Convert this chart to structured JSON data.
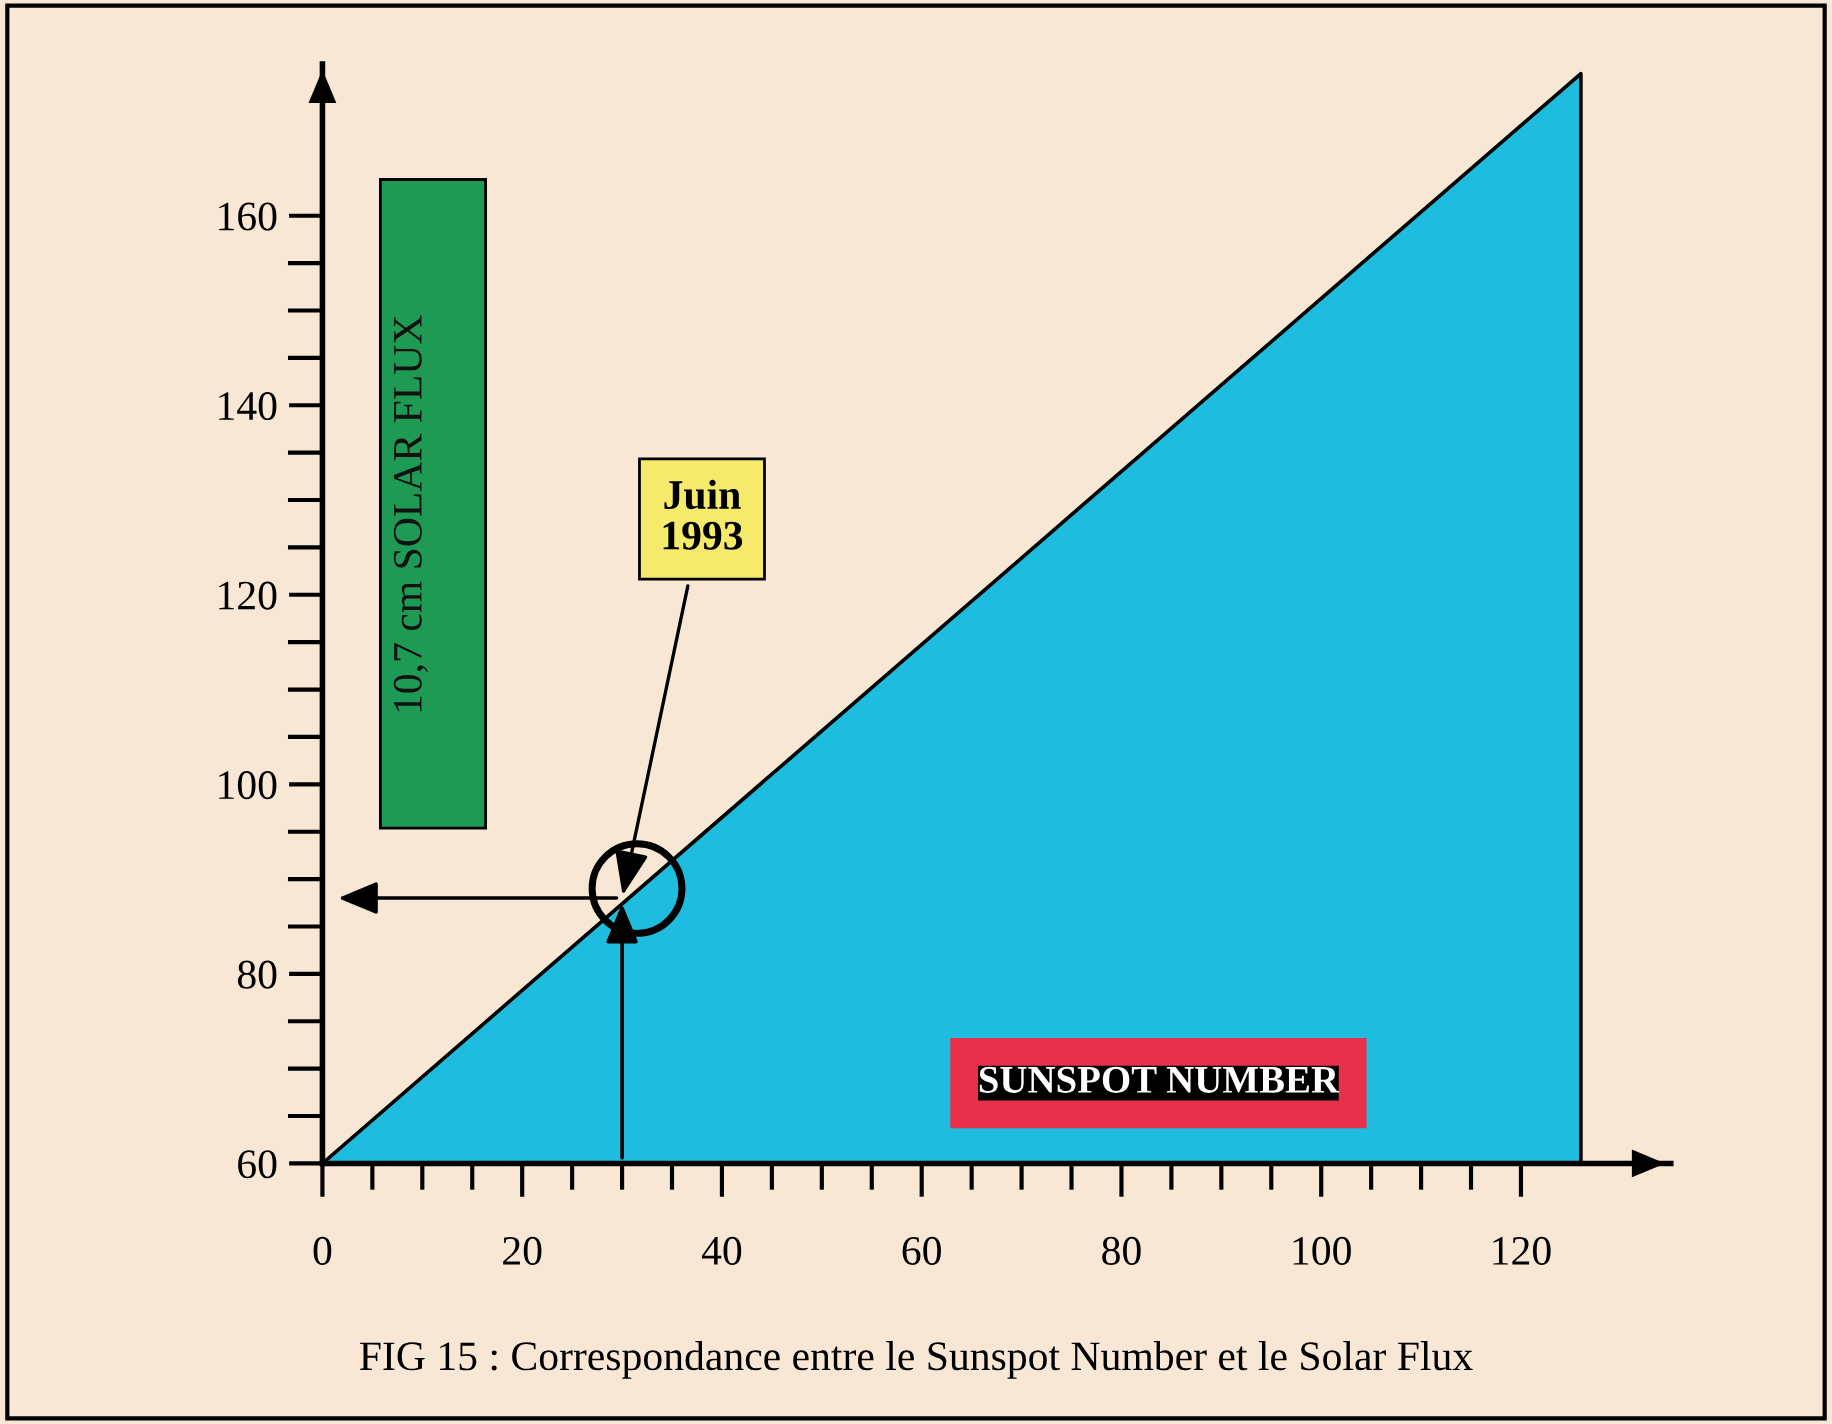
{
  "chart_data": {
    "type": "area",
    "x": [
      0,
      126
    ],
    "series": [
      {
        "color": "#1ebde0",
        "values": [
          60,
          175
        ]
      }
    ],
    "xlim": [
      0,
      135
    ],
    "ylim": [
      60,
      176
    ],
    "xticks": [
      0,
      20,
      40,
      60,
      80,
      100,
      120
    ],
    "yticks": [
      60,
      80,
      100,
      120,
      140,
      160
    ],
    "xlabel": "SUNSPOT NUMBER",
    "ylabel": "10,7 cm SOLAR FLUX",
    "grid": false,
    "legend": false,
    "annotations": [
      {
        "text": "Juin\n1993",
        "x": 30,
        "y": 88
      },
      "FIG 15 : Correspondance entre le Sunspot Number et le Solar Flux"
    ]
  }
}
